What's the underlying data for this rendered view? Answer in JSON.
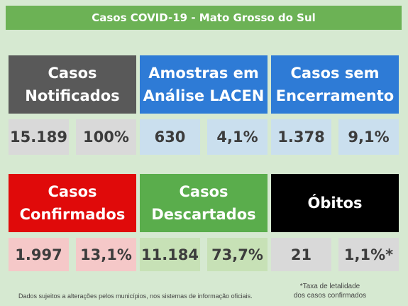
{
  "header": {
    "title": "Casos COVID-19 - Mato Grosso do Sul"
  },
  "panels": [
    {
      "title_lines": [
        "Casos",
        "Notificados"
      ],
      "value": "15.189",
      "percent": "100%"
    },
    {
      "title_lines": [
        "Amostras em",
        "Análise LACEN"
      ],
      "value": "630",
      "percent": "4,1%"
    },
    {
      "title_lines": [
        "Casos sem",
        "Encerramento"
      ],
      "value": "1.378",
      "percent": "9,1%"
    },
    {
      "title_lines": [
        "Casos",
        "Confirmados"
      ],
      "value": "1.997",
      "percent": "13,1%"
    },
    {
      "title_lines": [
        "Casos",
        "Descartados"
      ],
      "value": "11.184",
      "percent": "73,7%"
    },
    {
      "title_lines": [
        "Óbitos"
      ],
      "value": "21",
      "percent": "1,1%*"
    }
  ],
  "footer": {
    "disclaimer": "Dados sujeitos a alterações pelos municípios, nos sistemas de informação oficiais.",
    "note_lines": [
      "*Taxa de letalidade",
      "dos casos confirmados"
    ]
  }
}
